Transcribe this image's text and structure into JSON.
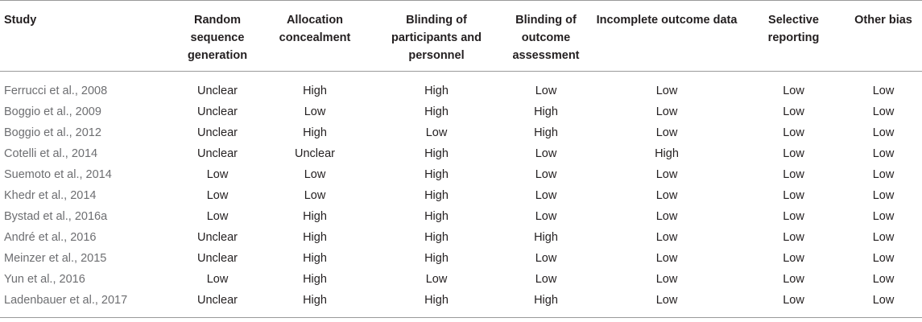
{
  "table": {
    "headers": [
      "Study",
      "Random sequence generation",
      "Allocation concealment",
      "Blinding of participants and personnel",
      "Blinding of outcome assessment",
      "Incomplete outcome data",
      "Selective reporting",
      "Other bias"
    ],
    "rows": [
      [
        "Ferrucci et al., 2008",
        "Unclear",
        "High",
        "High",
        "Low",
        "Low",
        "Low",
        "Low"
      ],
      [
        "Boggio et al., 2009",
        "Unclear",
        "Low",
        "High",
        "High",
        "Low",
        "Low",
        "Low"
      ],
      [
        "Boggio et al., 2012",
        "Unclear",
        "High",
        "Low",
        "High",
        "Low",
        "Low",
        "Low"
      ],
      [
        "Cotelli et al., 2014",
        "Unclear",
        "Unclear",
        "High",
        "Low",
        "High",
        "Low",
        "Low"
      ],
      [
        "Suemoto et al., 2014",
        "Low",
        "Low",
        "High",
        "Low",
        "Low",
        "Low",
        "Low"
      ],
      [
        "Khedr et al., 2014",
        "Low",
        "Low",
        "High",
        "Low",
        "Low",
        "Low",
        "Low"
      ],
      [
        "Bystad et al., 2016a",
        "Low",
        "High",
        "High",
        "Low",
        "Low",
        "Low",
        "Low"
      ],
      [
        "André et al., 2016",
        "Unclear",
        "High",
        "High",
        "High",
        "Low",
        "Low",
        "Low"
      ],
      [
        "Meinzer et al., 2015",
        "Unclear",
        "High",
        "High",
        "Low",
        "Low",
        "Low",
        "Low"
      ],
      [
        "Yun et al., 2016",
        "Low",
        "High",
        "Low",
        "Low",
        "Low",
        "Low",
        "Low"
      ],
      [
        "Ladenbauer et al., 2017",
        "Unclear",
        "High",
        "High",
        "High",
        "Low",
        "Low",
        "Low"
      ]
    ]
  }
}
